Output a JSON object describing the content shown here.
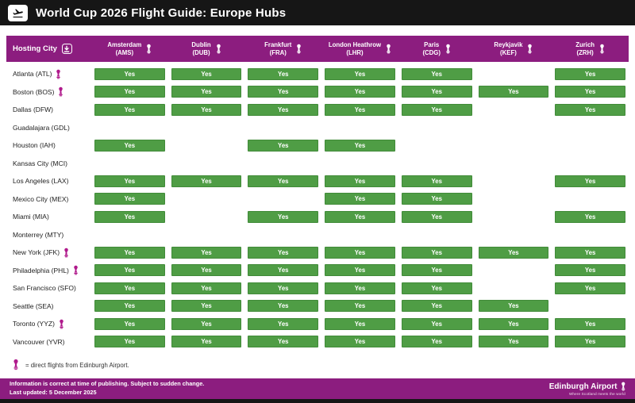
{
  "title_bar": {
    "title": "World Cup 2026 Flight Guide: Europe Hubs",
    "icon": "flight-takeoff"
  },
  "yes_label": "Yes",
  "table": {
    "corner_label": "Hosting City",
    "columns": [
      {
        "name": "Amsterdam",
        "code": "(AMS)"
      },
      {
        "name": "Dublin",
        "code": "(DUB)"
      },
      {
        "name": "Frankfurt",
        "code": "(FRA)"
      },
      {
        "name": "London Heathrow",
        "code": "(LHR)"
      },
      {
        "name": "Paris",
        "code": "(CDG)"
      },
      {
        "name": "Reykjavik",
        "code": "(KEF)"
      },
      {
        "name": "Zurich",
        "code": "(ZRH)"
      }
    ],
    "rows": [
      {
        "city": "Atlanta (ATL)",
        "edinburgh_direct": true,
        "flights": [
          true,
          true,
          true,
          true,
          true,
          false,
          true
        ]
      },
      {
        "city": "Boston (BOS)",
        "edinburgh_direct": true,
        "flights": [
          true,
          true,
          true,
          true,
          true,
          true,
          true
        ]
      },
      {
        "city": "Dallas (DFW)",
        "edinburgh_direct": false,
        "flights": [
          true,
          true,
          true,
          true,
          true,
          false,
          true
        ]
      },
      {
        "city": "Guadalajara (GDL)",
        "edinburgh_direct": false,
        "flights": [
          false,
          false,
          false,
          false,
          false,
          false,
          false
        ]
      },
      {
        "city": "Houston (IAH)",
        "edinburgh_direct": false,
        "flights": [
          true,
          false,
          true,
          true,
          false,
          false,
          false
        ]
      },
      {
        "city": "Kansas City (MCI)",
        "edinburgh_direct": false,
        "flights": [
          false,
          false,
          false,
          false,
          false,
          false,
          false
        ]
      },
      {
        "city": "Los Angeles (LAX)",
        "edinburgh_direct": false,
        "flights": [
          true,
          true,
          true,
          true,
          true,
          false,
          true
        ]
      },
      {
        "city": "Mexico City (MEX)",
        "edinburgh_direct": false,
        "flights": [
          true,
          false,
          false,
          true,
          true,
          false,
          false
        ]
      },
      {
        "city": "Miami (MIA)",
        "edinburgh_direct": false,
        "flights": [
          true,
          false,
          true,
          true,
          true,
          false,
          true
        ]
      },
      {
        "city": "Monterrey (MTY)",
        "edinburgh_direct": false,
        "flights": [
          false,
          false,
          false,
          false,
          false,
          false,
          false
        ]
      },
      {
        "city": "New York (JFK)",
        "edinburgh_direct": true,
        "flights": [
          true,
          true,
          true,
          true,
          true,
          true,
          true
        ]
      },
      {
        "city": "Philadelphia (PHL)",
        "edinburgh_direct": true,
        "flights": [
          true,
          true,
          true,
          true,
          true,
          false,
          true
        ]
      },
      {
        "city": "San Francisco (SFO)",
        "edinburgh_direct": false,
        "flights": [
          true,
          true,
          true,
          true,
          true,
          false,
          true
        ]
      },
      {
        "city": "Seattle (SEA)",
        "edinburgh_direct": false,
        "flights": [
          true,
          true,
          true,
          true,
          true,
          true,
          false
        ]
      },
      {
        "city": "Toronto (YYZ)",
        "edinburgh_direct": true,
        "flights": [
          true,
          true,
          true,
          true,
          true,
          true,
          true
        ]
      },
      {
        "city": "Vancouver (YVR)",
        "edinburgh_direct": false,
        "flights": [
          true,
          true,
          true,
          true,
          true,
          true,
          true
        ]
      }
    ]
  },
  "legend": {
    "text": "= direct flights from Edinburgh Airport."
  },
  "footer": {
    "line1": "Information is correct at time of publishing. Subject to sudden change.",
    "line2": "Last updated: 5 December 2025",
    "brand": "Edinburgh Airport",
    "brand_tagline": "Where Scotland meets the world"
  },
  "colors": {
    "purple": "#8C1D7F",
    "green": "#4F9D45",
    "magenta": "#B01A8C",
    "titlebar_black": "#161616"
  }
}
